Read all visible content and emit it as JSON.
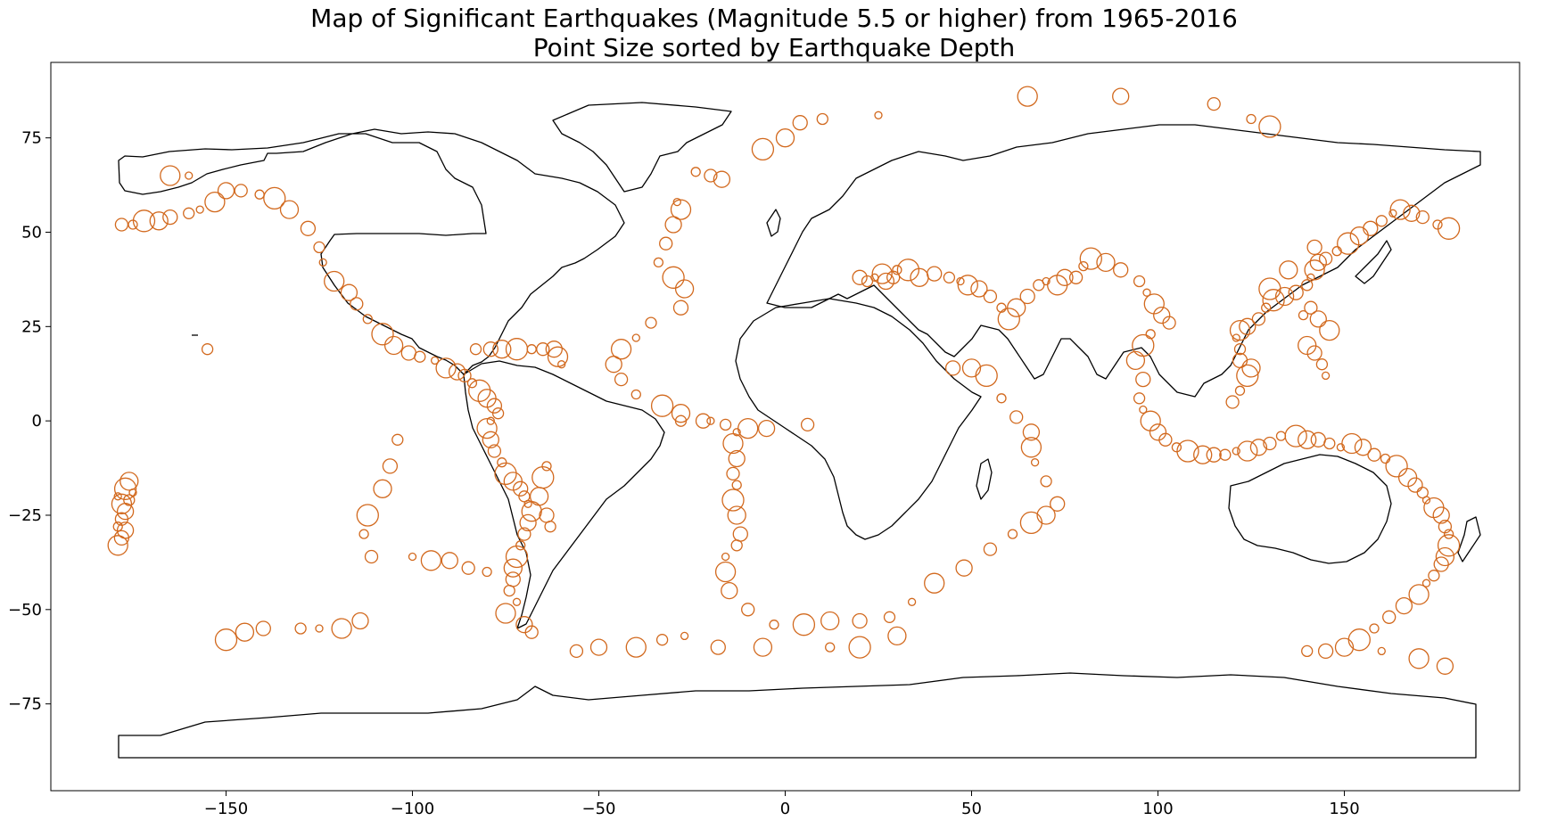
{
  "chart_data": {
    "type": "scatter",
    "title": "Map of Significant Earthquakes (Magnitude 5.5 or higher) from 1965-2016",
    "subtitle": "Point Size sorted by Earthquake Depth",
    "xlabel": "",
    "ylabel": "",
    "xlim": [
      -197,
      197
    ],
    "ylim": [
      -98,
      95
    ],
    "xticks": [
      -150,
      -100,
      -50,
      0,
      50,
      100,
      150
    ],
    "yticks": [
      -75,
      -50,
      -25,
      0,
      25,
      50,
      75
    ],
    "grid": false,
    "legend": "none",
    "marker_color": "#d2691e",
    "outline_color": "#000000",
    "series": [
      {
        "points": [
          [
            -179,
            -20
          ],
          [
            -178,
            -22
          ],
          [
            -177,
            -24
          ],
          [
            -178,
            -26
          ],
          [
            -179,
            -28
          ],
          [
            -177,
            -18
          ],
          [
            -176,
            -16
          ],
          [
            -178,
            -31
          ],
          [
            -176,
            -21
          ],
          [
            -175,
            -19
          ],
          [
            -179,
            -33
          ],
          [
            -177,
            -29
          ],
          [
            -178,
            52
          ],
          [
            -175,
            52
          ],
          [
            -172,
            53
          ],
          [
            -168,
            53
          ],
          [
            -165,
            54
          ],
          [
            -160,
            55
          ],
          [
            -157,
            56
          ],
          [
            -153,
            58
          ],
          [
            -150,
            61
          ],
          [
            -146,
            61
          ],
          [
            -141,
            60
          ],
          [
            -137,
            59
          ],
          [
            -133,
            56
          ],
          [
            -128,
            51
          ],
          [
            -125,
            46
          ],
          [
            -124,
            42
          ],
          [
            -121,
            37
          ],
          [
            -117,
            34
          ],
          [
            -115,
            31
          ],
          [
            -112,
            27
          ],
          [
            -108,
            23
          ],
          [
            -105,
            20
          ],
          [
            -101,
            18
          ],
          [
            -98,
            17
          ],
          [
            -94,
            16
          ],
          [
            -91,
            14
          ],
          [
            -88,
            13
          ],
          [
            -86,
            12
          ],
          [
            -84,
            10
          ],
          [
            -82,
            8
          ],
          [
            -80,
            6
          ],
          [
            -78,
            4
          ],
          [
            -77,
            2
          ],
          [
            -79,
            0
          ],
          [
            -80,
            -2
          ],
          [
            -79,
            -5
          ],
          [
            -78,
            -8
          ],
          [
            -76,
            -11
          ],
          [
            -75,
            -14
          ],
          [
            -73,
            -16
          ],
          [
            -71,
            -18
          ],
          [
            -70,
            -20
          ],
          [
            -69,
            -22
          ],
          [
            -68,
            -24
          ],
          [
            -69,
            -27
          ],
          [
            -70,
            -30
          ],
          [
            -71,
            -33
          ],
          [
            -72,
            -36
          ],
          [
            -73,
            -39
          ],
          [
            -73,
            -42
          ],
          [
            -74,
            -45
          ],
          [
            -72,
            -48
          ],
          [
            -75,
            -51
          ],
          [
            -70,
            -54
          ],
          [
            -68,
            -56
          ],
          [
            -64,
            -12
          ],
          [
            -65,
            -15
          ],
          [
            -66,
            -20
          ],
          [
            -64,
            -25
          ],
          [
            -63,
            -28
          ],
          [
            -60,
            15
          ],
          [
            -61,
            17
          ],
          [
            -62,
            19
          ],
          [
            -65,
            19
          ],
          [
            -68,
            19
          ],
          [
            -72,
            19
          ],
          [
            -76,
            19
          ],
          [
            -79,
            19
          ],
          [
            -83,
            19
          ],
          [
            -29,
            58
          ],
          [
            -28,
            56
          ],
          [
            -30,
            52
          ],
          [
            -32,
            47
          ],
          [
            -34,
            42
          ],
          [
            -30,
            38
          ],
          [
            -27,
            35
          ],
          [
            -28,
            30
          ],
          [
            -36,
            26
          ],
          [
            -40,
            22
          ],
          [
            -44,
            19
          ],
          [
            -46,
            15
          ],
          [
            -44,
            11
          ],
          [
            -40,
            7
          ],
          [
            -33,
            4
          ],
          [
            -28,
            2
          ],
          [
            -22,
            0
          ],
          [
            -16,
            -1
          ],
          [
            -13,
            -3
          ],
          [
            -14,
            -6
          ],
          [
            -13,
            -10
          ],
          [
            -14,
            -14
          ],
          [
            -13,
            -17
          ],
          [
            -14,
            -21
          ],
          [
            -13,
            -25
          ],
          [
            -12,
            -30
          ],
          [
            -13,
            -33
          ],
          [
            -16,
            -36
          ],
          [
            -16,
            -40
          ],
          [
            -15,
            -45
          ],
          [
            -10,
            -50
          ],
          [
            -3,
            -54
          ],
          [
            5,
            -54
          ],
          [
            12,
            -53
          ],
          [
            20,
            -53
          ],
          [
            28,
            -52
          ],
          [
            34,
            -48
          ],
          [
            40,
            -43
          ],
          [
            48,
            -39
          ],
          [
            55,
            -34
          ],
          [
            61,
            -30
          ],
          [
            66,
            -27
          ],
          [
            70,
            -25
          ],
          [
            73,
            -22
          ],
          [
            70,
            -16
          ],
          [
            67,
            -11
          ],
          [
            66,
            -7
          ],
          [
            66,
            -3
          ],
          [
            62,
            1
          ],
          [
            58,
            6
          ],
          [
            54,
            12
          ],
          [
            50,
            14
          ],
          [
            45,
            14
          ],
          [
            -130,
            -55
          ],
          [
            -125,
            -55
          ],
          [
            -119,
            -55
          ],
          [
            -114,
            -53
          ],
          [
            -111,
            -36
          ],
          [
            -113,
            -30
          ],
          [
            -112,
            -25
          ],
          [
            -108,
            -18
          ],
          [
            -106,
            -12
          ],
          [
            -104,
            -5
          ],
          [
            -100,
            -36
          ],
          [
            -95,
            -37
          ],
          [
            -90,
            -37
          ],
          [
            -85,
            -39
          ],
          [
            -80,
            -40
          ],
          [
            -150,
            -58
          ],
          [
            -145,
            -56
          ],
          [
            -140,
            -55
          ],
          [
            -155,
            19
          ],
          [
            -160,
            65
          ],
          [
            -165,
            65
          ],
          [
            -17,
            64
          ],
          [
            -20,
            65
          ],
          [
            -24,
            66
          ],
          [
            -6,
            72
          ],
          [
            0,
            75
          ],
          [
            4,
            79
          ],
          [
            10,
            80
          ],
          [
            25,
            81
          ],
          [
            65,
            86
          ],
          [
            90,
            86
          ],
          [
            115,
            84
          ],
          [
            125,
            80
          ],
          [
            130,
            78
          ],
          [
            -6,
            -60
          ],
          [
            -18,
            -60
          ],
          [
            -33,
            -58
          ],
          [
            -27,
            -57
          ],
          [
            -40,
            -60
          ],
          [
            -50,
            -60
          ],
          [
            -56,
            -61
          ],
          [
            12,
            -60
          ],
          [
            20,
            -60
          ],
          [
            30,
            -57
          ],
          [
            20,
            38
          ],
          [
            22,
            37
          ],
          [
            24,
            38
          ],
          [
            26,
            39
          ],
          [
            27,
            37
          ],
          [
            29,
            38
          ],
          [
            30,
            40
          ],
          [
            33,
            40
          ],
          [
            36,
            38
          ],
          [
            40,
            39
          ],
          [
            44,
            38
          ],
          [
            47,
            37
          ],
          [
            49,
            36
          ],
          [
            52,
            35
          ],
          [
            55,
            33
          ],
          [
            58,
            30
          ],
          [
            60,
            27
          ],
          [
            62,
            30
          ],
          [
            65,
            33
          ],
          [
            68,
            36
          ],
          [
            70,
            37
          ],
          [
            73,
            36
          ],
          [
            75,
            38
          ],
          [
            78,
            38
          ],
          [
            80,
            41
          ],
          [
            82,
            43
          ],
          [
            86,
            42
          ],
          [
            90,
            40
          ],
          [
            95,
            37
          ],
          [
            97,
            34
          ],
          [
            99,
            31
          ],
          [
            101,
            28
          ],
          [
            103,
            26
          ],
          [
            98,
            23
          ],
          [
            96,
            20
          ],
          [
            94,
            16
          ],
          [
            96,
            11
          ],
          [
            95,
            6
          ],
          [
            96,
            3
          ],
          [
            98,
            0
          ],
          [
            100,
            -3
          ],
          [
            102,
            -5
          ],
          [
            105,
            -7
          ],
          [
            108,
            -8
          ],
          [
            112,
            -9
          ],
          [
            115,
            -9
          ],
          [
            118,
            -9
          ],
          [
            121,
            -8
          ],
          [
            124,
            -8
          ],
          [
            127,
            -7
          ],
          [
            130,
            -6
          ],
          [
            133,
            -4
          ],
          [
            137,
            -4
          ],
          [
            140,
            -5
          ],
          [
            143,
            -5
          ],
          [
            146,
            -6
          ],
          [
            149,
            -7
          ],
          [
            152,
            -6
          ],
          [
            155,
            -7
          ],
          [
            158,
            -9
          ],
          [
            161,
            -10
          ],
          [
            164,
            -12
          ],
          [
            167,
            -15
          ],
          [
            169,
            -17
          ],
          [
            171,
            -19
          ],
          [
            172,
            -21
          ],
          [
            174,
            -23
          ],
          [
            176,
            -25
          ],
          [
            177,
            -28
          ],
          [
            178,
            -30
          ],
          [
            178,
            -33
          ],
          [
            177,
            -36
          ],
          [
            176,
            -38
          ],
          [
            174,
            -41
          ],
          [
            172,
            -43
          ],
          [
            170,
            -46
          ],
          [
            166,
            -49
          ],
          [
            162,
            -52
          ],
          [
            158,
            -55
          ],
          [
            154,
            -58
          ],
          [
            150,
            -60
          ],
          [
            145,
            -61
          ],
          [
            140,
            -61
          ],
          [
            160,
            -61
          ],
          [
            170,
            -63
          ],
          [
            177,
            -65
          ],
          [
            120,
            5
          ],
          [
            122,
            8
          ],
          [
            124,
            12
          ],
          [
            125,
            14
          ],
          [
            122,
            16
          ],
          [
            122,
            19
          ],
          [
            121,
            22
          ],
          [
            122,
            24
          ],
          [
            124,
            25
          ],
          [
            127,
            27
          ],
          [
            129,
            30
          ],
          [
            131,
            32
          ],
          [
            134,
            33
          ],
          [
            137,
            34
          ],
          [
            140,
            36
          ],
          [
            141,
            38
          ],
          [
            142,
            40
          ],
          [
            143,
            42
          ],
          [
            145,
            43
          ],
          [
            148,
            45
          ],
          [
            151,
            47
          ],
          [
            154,
            49
          ],
          [
            157,
            51
          ],
          [
            160,
            53
          ],
          [
            163,
            55
          ],
          [
            165,
            56
          ],
          [
            168,
            55
          ],
          [
            171,
            54
          ],
          [
            175,
            52
          ],
          [
            178,
            51
          ],
          [
            140,
            20
          ],
          [
            142,
            18
          ],
          [
            144,
            15
          ],
          [
            145,
            12
          ],
          [
            146,
            24
          ],
          [
            143,
            27
          ],
          [
            141,
            30
          ],
          [
            139,
            28
          ],
          [
            130,
            35
          ],
          [
            135,
            40
          ],
          [
            142,
            46
          ],
          [
            -28,
            0
          ],
          [
            -20,
            0
          ],
          [
            -10,
            -2
          ],
          [
            -5,
            -2
          ],
          [
            6,
            -1
          ]
        ]
      }
    ]
  }
}
